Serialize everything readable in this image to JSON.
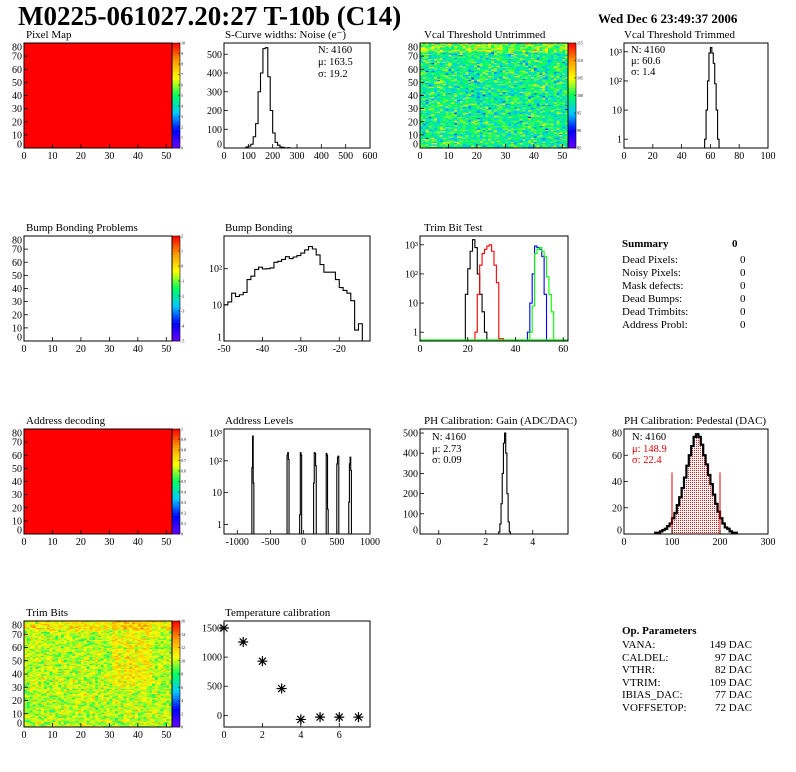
{
  "header": {
    "title": "M0225-061027.20:27 T-10b (C14)",
    "date": "Wed Dec  6 23:49:37 2006"
  },
  "colors": {
    "palette": [
      "#6a00ff",
      "#0000ff",
      "#00c8ff",
      "#00ff60",
      "#ffff00",
      "#ff9900",
      "#ff0000"
    ],
    "trim_series": [
      "#000000",
      "#ff0000",
      "#0000ff",
      "#00ff00"
    ],
    "pedestal_fill": "#ff0000"
  },
  "stats": {
    "noise": {
      "n": "N: 4160",
      "mu": "μ: 163.5",
      "sigma": "σ: 19.2"
    },
    "vcal_trimmed": {
      "n": "N: 4160",
      "mu": "μ: 60.6",
      "sigma": "σ:  1.4"
    },
    "gain": {
      "n": "N: 4160",
      "mu": "μ: 2.73",
      "sigma": "σ: 0.09"
    },
    "pedestal": {
      "n": "N: 4160",
      "mu": "μ: 148.9",
      "sigma": "σ: 22.4"
    }
  },
  "summary": {
    "title": "Summary",
    "total": "0",
    "rows": [
      {
        "label": "Dead Pixels:",
        "value": "0"
      },
      {
        "label": "Noisy Pixels:",
        "value": "0"
      },
      {
        "label": "Mask defects:",
        "value": "0"
      },
      {
        "label": "Dead Bumps:",
        "value": "0"
      },
      {
        "label": "Dead Trimbits:",
        "value": "0"
      },
      {
        "label": "Address Probl:",
        "value": "0"
      }
    ]
  },
  "op_parameters": {
    "title": "Op. Parameters",
    "rows": [
      {
        "label": "VANA:",
        "value": "149 DAC"
      },
      {
        "label": "CALDEL:",
        "value": "97 DAC"
      },
      {
        "label": "VTHR:",
        "value": "82 DAC"
      },
      {
        "label": "VTRIM:",
        "value": "109 DAC"
      },
      {
        "label": "IBIAS_DAC:",
        "value": "77 DAC"
      },
      {
        "label": "VOFFSETOP:",
        "value": "72 DAC"
      }
    ]
  },
  "chart_data": [
    {
      "id": "pixel_map",
      "type": "heatmap",
      "title": "Pixel Map",
      "xlim": [
        0,
        52
      ],
      "ylim": [
        0,
        80
      ],
      "xticks": [
        0,
        10,
        20,
        30,
        40,
        50
      ],
      "yticks": [
        0,
        10,
        20,
        30,
        40,
        50,
        60,
        70,
        80
      ],
      "zlim": [
        0,
        10
      ],
      "zticks": [
        0,
        1,
        2,
        3,
        4,
        5,
        6,
        7,
        8,
        9,
        10
      ],
      "uniform_value": 10
    },
    {
      "id": "noise",
      "type": "bar",
      "title": "S-Curve widths: Noise (e⁻)",
      "xlim": [
        0,
        600
      ],
      "ylim": [
        0,
        560
      ],
      "xticks": [
        0,
        100,
        200,
        300,
        400,
        500,
        600
      ],
      "yticks": [
        0,
        100,
        200,
        300,
        400,
        500
      ],
      "bin_width": 10,
      "x": [
        90,
        100,
        110,
        120,
        130,
        140,
        150,
        160,
        170,
        180,
        190,
        200,
        210,
        220,
        230,
        240,
        250,
        260
      ],
      "values": [
        5,
        10,
        20,
        60,
        130,
        300,
        400,
        530,
        535,
        380,
        200,
        80,
        30,
        15,
        5,
        3,
        0,
        2
      ]
    },
    {
      "id": "vcal_untrimmed",
      "type": "heatmap",
      "title": "Vcal Threshold Untrimmed",
      "xlim": [
        0,
        52
      ],
      "ylim": [
        0,
        80
      ],
      "xticks": [
        0,
        10,
        20,
        30,
        40,
        50
      ],
      "yticks": [
        0,
        10,
        20,
        30,
        40,
        50,
        60,
        70,
        80
      ],
      "zlim": [
        85,
        115
      ],
      "zticks": [
        85,
        90,
        95,
        100,
        105,
        110,
        115
      ],
      "mean": 99,
      "spread": 4
    },
    {
      "id": "vcal_trimmed",
      "type": "bar",
      "log_y": true,
      "title": "Vcal Threshold Trimmed",
      "xlim": [
        0,
        100
      ],
      "ylim": [
        0.5,
        2000
      ],
      "xticks": [
        0,
        20,
        40,
        60,
        80,
        100
      ],
      "yticks": [
        1,
        10,
        100,
        1000
      ],
      "ytick_labels": [
        "1",
        "10",
        "10²",
        "10³"
      ],
      "bin_width": 1,
      "x": [
        56,
        57,
        58,
        59,
        60,
        61,
        62,
        63,
        64,
        65
      ],
      "values": [
        1,
        10,
        100,
        900,
        1400,
        900,
        400,
        80,
        10,
        1
      ]
    },
    {
      "id": "bump_bonding_problems",
      "type": "heatmap",
      "title": "Bump Bonding Problems",
      "xlim": [
        0,
        52
      ],
      "ylim": [
        0,
        80
      ],
      "xticks": [
        0,
        10,
        20,
        30,
        40,
        50
      ],
      "yticks": [
        0,
        10,
        20,
        30,
        40,
        50,
        60,
        70,
        80
      ],
      "zlim": [
        -5,
        2
      ],
      "zticks": [
        -5,
        -4,
        -3,
        -2,
        -1,
        0,
        1,
        2
      ],
      "empty": true
    },
    {
      "id": "bump_bonding",
      "type": "bar",
      "log_y": true,
      "title": "Bump Bonding",
      "xlim": [
        -50,
        -12
      ],
      "ylim": [
        1,
        800
      ],
      "xticks": [
        -50,
        -40,
        -30,
        -20
      ],
      "yticks": [
        1,
        10,
        100
      ],
      "ytick_labels": [
        "1",
        "10",
        "10²"
      ],
      "bin_width": 1,
      "x": [
        -50,
        -49,
        -48,
        -47,
        -46,
        -45,
        -44,
        -43,
        -42,
        -41,
        -40,
        -39,
        -38,
        -37,
        -36,
        -35,
        -34,
        -33,
        -32,
        -31,
        -30,
        -29,
        -28,
        -27,
        -26,
        -25,
        -24,
        -23,
        -22,
        -21,
        -20,
        -19,
        -18,
        -17,
        -16,
        -15
      ],
      "values": [
        10,
        12,
        21,
        17,
        19,
        22,
        50,
        62,
        95,
        110,
        98,
        100,
        105,
        150,
        160,
        180,
        215,
        190,
        210,
        230,
        270,
        330,
        410,
        350,
        240,
        130,
        80,
        80,
        80,
        50,
        30,
        25,
        21,
        13,
        2,
        3
      ]
    },
    {
      "id": "trim_bit_test",
      "type": "bar",
      "log_y": true,
      "title": "Trim Bit Test",
      "xlim": [
        0,
        62
      ],
      "ylim": [
        0.5,
        2000
      ],
      "xticks": [
        0,
        20,
        40,
        60
      ],
      "yticks": [
        1,
        10,
        100,
        1000
      ],
      "ytick_labels": [
        "1",
        "10",
        "10²",
        "10³"
      ],
      "bin_width": 1,
      "series": [
        {
          "x": [
            19,
            20,
            21,
            22,
            23,
            24,
            25,
            26,
            27,
            28,
            29
          ],
          "values": [
            20,
            150,
            600,
            1500,
            800,
            100,
            20,
            5,
            1,
            0.5,
            0.5
          ]
        },
        {
          "x": [
            23,
            24,
            25,
            26,
            27,
            28,
            29,
            30,
            31,
            32,
            33,
            34
          ],
          "values": [
            1,
            20,
            200,
            500,
            700,
            900,
            1000,
            600,
            200,
            50,
            0.6,
            0.6
          ]
        },
        {
          "x": [
            45,
            46,
            47,
            48,
            49,
            50,
            51,
            52,
            53,
            54
          ],
          "values": [
            1,
            10,
            100,
            900,
            800,
            700,
            400,
            20,
            0.5,
            0.5
          ]
        },
        {
          "x": [
            46,
            47,
            48,
            49,
            50,
            51,
            52,
            53,
            54,
            55,
            56,
            57
          ],
          "values": [
            1,
            8,
            500,
            700,
            800,
            600,
            400,
            80,
            20,
            5,
            0.5,
            0.5
          ]
        }
      ]
    },
    {
      "id": "address_decoding",
      "type": "heatmap",
      "title": "Address decoding",
      "xlim": [
        0,
        52
      ],
      "ylim": [
        0,
        80
      ],
      "xticks": [
        0,
        10,
        20,
        30,
        40,
        50
      ],
      "yticks": [
        0,
        10,
        20,
        30,
        40,
        50,
        60,
        70,
        80
      ],
      "zlim": [
        0,
        1
      ],
      "zticks": [
        0,
        0.1,
        0.2,
        0.3,
        0.4,
        0.5,
        0.6,
        0.7,
        0.8,
        0.9,
        1
      ],
      "uniform_value": 1
    },
    {
      "id": "address_levels",
      "type": "bar",
      "log_y": true,
      "title": "Address Levels",
      "xlim": [
        -1200,
        1000
      ],
      "ylim": [
        0.5,
        1000
      ],
      "xticks": [
        -1000,
        -500,
        0,
        500,
        1000
      ],
      "yticks": [
        1,
        10,
        100,
        1000
      ],
      "ytick_labels": [
        "1",
        "10",
        "10²",
        "10³"
      ],
      "bin_width": 10,
      "x": [
        -780,
        -770,
        -760,
        -250,
        -240,
        -230,
        -60,
        -50,
        -40,
        150,
        160,
        170,
        180,
        340,
        350,
        360,
        500,
        510,
        520,
        680,
        690,
        700,
        710
      ],
      "values": [
        60,
        600,
        20,
        150,
        180,
        110,
        2,
        180,
        150,
        20,
        180,
        170,
        70,
        170,
        150,
        3,
        80,
        130,
        140,
        5,
        80,
        130,
        50
      ]
    },
    {
      "id": "gain",
      "type": "bar",
      "title": "PH Calibration: Gain (ADC/DAC)",
      "xlim": [
        -0.8,
        5.5
      ],
      "ylim": [
        0,
        520
      ],
      "xticks": [
        0,
        2,
        4
      ],
      "yticks": [
        0,
        100,
        200,
        300,
        400,
        500
      ],
      "bin_width": 0.05,
      "x": [
        2.55,
        2.6,
        2.65,
        2.7,
        2.75,
        2.8,
        2.85,
        2.9,
        2.95,
        3.0
      ],
      "values": [
        10,
        50,
        150,
        300,
        450,
        500,
        400,
        200,
        60,
        10
      ]
    },
    {
      "id": "pedestal",
      "type": "bar",
      "title": "PH Calibration: Pedestal (DAC)",
      "xlim": [
        0,
        300
      ],
      "ylim": [
        0,
        80
      ],
      "xticks": [
        0,
        100,
        200,
        300
      ],
      "yticks": [
        0,
        20,
        40,
        60,
        80
      ],
      "bin_width": 5,
      "x": [
        65,
        70,
        75,
        80,
        85,
        90,
        95,
        100,
        105,
        110,
        115,
        120,
        125,
        130,
        135,
        140,
        145,
        150,
        155,
        160,
        165,
        170,
        175,
        180,
        185,
        190,
        195,
        200,
        205,
        210,
        215,
        220,
        225,
        230
      ],
      "values": [
        1,
        1,
        2,
        3,
        4,
        6,
        8,
        12,
        16,
        22,
        28,
        35,
        43,
        52,
        60,
        67,
        74,
        76,
        74,
        68,
        60,
        53,
        45,
        38,
        30,
        23,
        17,
        12,
        8,
        5,
        4,
        2,
        1,
        1
      ],
      "fill_range": [
        100,
        200
      ],
      "cut_lines": [
        100,
        200
      ]
    },
    {
      "id": "trim_bits",
      "type": "heatmap",
      "title": "Trim Bits",
      "xlim": [
        0,
        52
      ],
      "ylim": [
        0,
        80
      ],
      "xticks": [
        0,
        10,
        20,
        30,
        40,
        50
      ],
      "yticks": [
        0,
        10,
        20,
        30,
        40,
        50,
        60,
        70,
        80
      ],
      "zlim": [
        0,
        16
      ],
      "zticks": [
        0,
        2,
        4,
        6,
        8,
        10,
        12,
        14,
        16
      ],
      "mean": 10,
      "spread": 1.5
    },
    {
      "id": "temperature_calibration",
      "type": "scatter",
      "title": "Temperature calibration",
      "xlim": [
        0,
        7.6
      ],
      "ylim": [
        -200,
        1620
      ],
      "xticks": [
        0,
        2,
        4,
        6
      ],
      "yticks": [
        0,
        500,
        1000,
        1500
      ],
      "x": [
        0,
        1,
        2,
        3,
        4,
        5,
        6,
        7
      ],
      "y": [
        1500,
        1260,
        930,
        460,
        -70,
        -30,
        -30,
        -30
      ]
    }
  ]
}
